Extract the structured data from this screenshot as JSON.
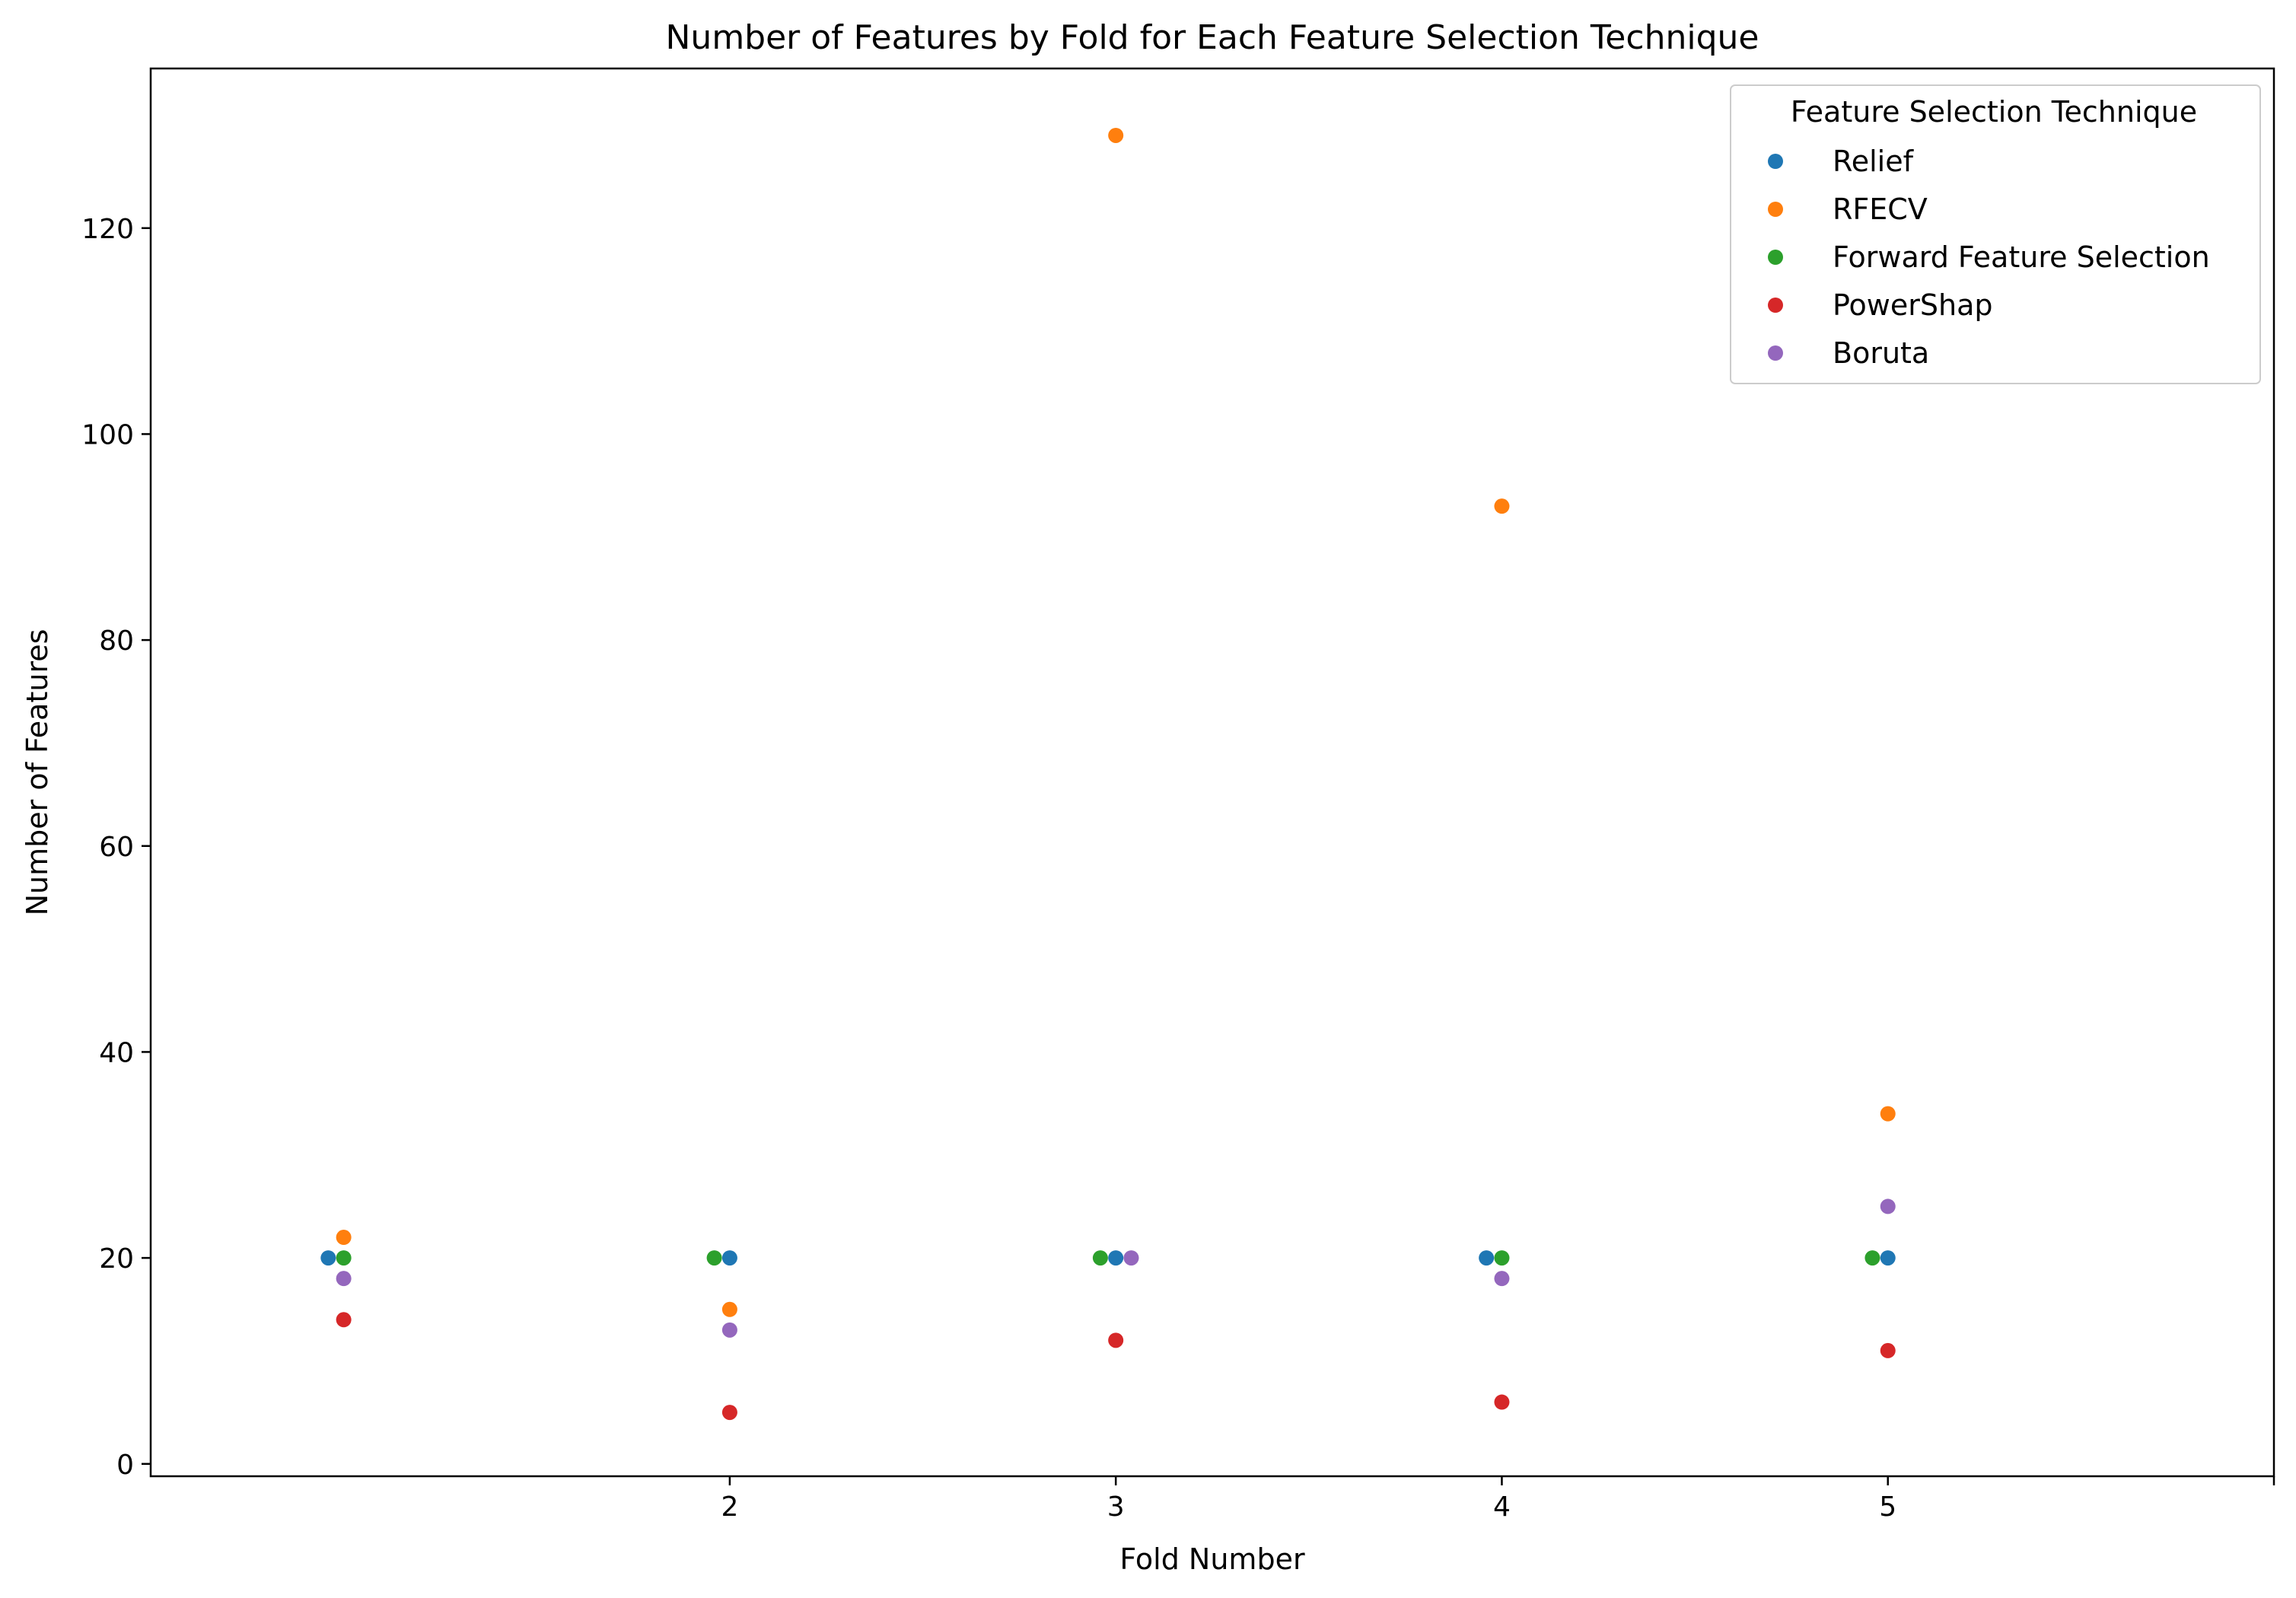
{
  "chart_data": {
    "type": "scatter",
    "title": "Number of Features by Fold for Each Feature Selection Technique",
    "xlabel": "Fold Number",
    "ylabel": "Number of Features",
    "x_ticks": [
      "2",
      "3",
      "4",
      "5"
    ],
    "y_ticks": [
      "0",
      "20",
      "40",
      "60",
      "80",
      "100",
      "120"
    ],
    "xlim": [
      0.5,
      6.0
    ],
    "ylim": [
      -1.2,
      135.5
    ],
    "grid": false,
    "legend": {
      "title": "Feature Selection Technique",
      "placement": "top-right"
    },
    "series": [
      {
        "name": "Relief",
        "color": "#1f77b4",
        "points": [
          [
            0.96,
            20
          ],
          [
            2.0,
            20
          ],
          [
            3.0,
            20
          ],
          [
            3.96,
            20
          ],
          [
            5.0,
            20
          ]
        ]
      },
      {
        "name": "RFECV",
        "color": "#ff7f0e",
        "points": [
          [
            1.0,
            22
          ],
          [
            2.0,
            15
          ],
          [
            3.0,
            129
          ],
          [
            4.0,
            93
          ],
          [
            5.0,
            34
          ]
        ]
      },
      {
        "name": "Forward Feature Selection",
        "color": "#2ca02c",
        "points": [
          [
            1.0,
            20
          ],
          [
            1.96,
            20
          ],
          [
            2.96,
            20
          ],
          [
            4.0,
            20
          ],
          [
            4.96,
            20
          ]
        ]
      },
      {
        "name": "PowerShap",
        "color": "#d62728",
        "points": [
          [
            1.0,
            14
          ],
          [
            2.0,
            5
          ],
          [
            3.0,
            12
          ],
          [
            4.0,
            6
          ],
          [
            5.0,
            11
          ]
        ]
      },
      {
        "name": "Boruta",
        "color": "#9467bd",
        "points": [
          [
            1.0,
            18
          ],
          [
            2.0,
            13
          ],
          [
            3.04,
            20
          ],
          [
            4.0,
            18
          ],
          [
            5.0,
            25
          ]
        ]
      }
    ]
  }
}
